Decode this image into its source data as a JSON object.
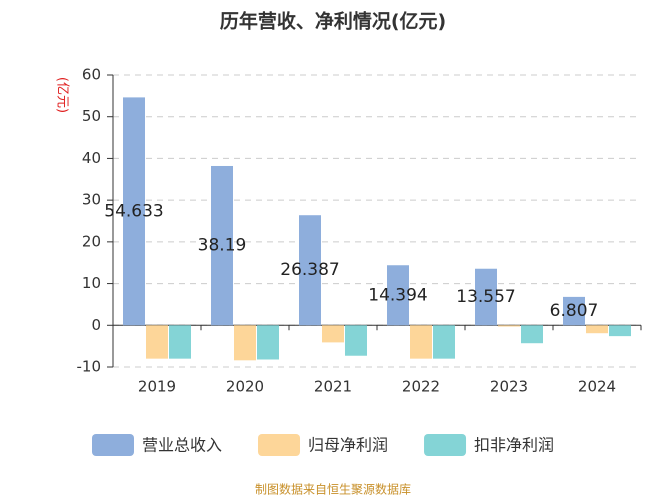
{
  "chart_data": {
    "type": "bar",
    "title": "历年营收、净利情况(亿元)",
    "y_axis_label": "(亿元)",
    "categories": [
      "2019",
      "2020",
      "2021",
      "2022",
      "2023",
      "2024"
    ],
    "series": [
      {
        "name": "营业总收入",
        "color": "#8eaedc",
        "values": [
          54.633,
          38.19,
          26.387,
          14.394,
          13.557,
          6.807
        ],
        "labels_shown": true
      },
      {
        "name": "归母净利润",
        "color": "#fdd699",
        "values": [
          -8.0,
          -8.4,
          -4.1,
          -8.0,
          -0.3,
          -1.9
        ]
      },
      {
        "name": "扣非净利润",
        "color": "#84d4d6",
        "values": [
          -8.0,
          -8.2,
          -7.3,
          -8.0,
          -4.3,
          -2.6
        ]
      }
    ],
    "ylim": [
      -10,
      60
    ],
    "yticks": [
      -10,
      0,
      10,
      20,
      30,
      40,
      50,
      60
    ],
    "grid": true,
    "source": "制图数据来自恒生聚源数据库"
  }
}
